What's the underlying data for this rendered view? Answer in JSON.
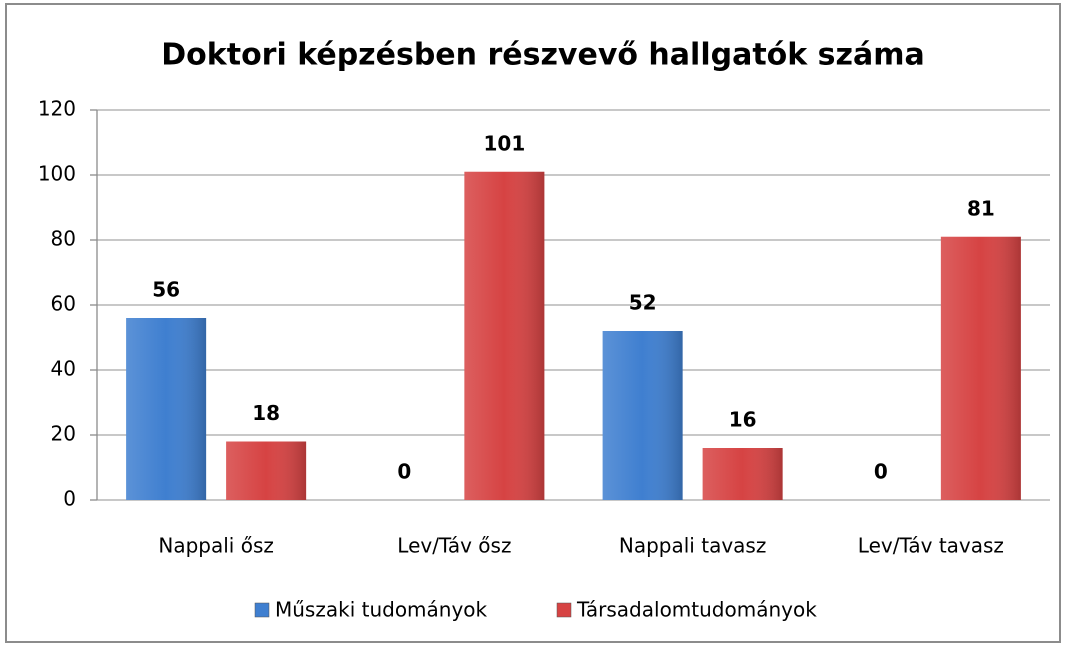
{
  "chart_data": {
    "type": "bar",
    "title": "Doktori képzésben részvevő hallgatók száma",
    "categories": [
      "Nappali ősz",
      "Lev/Táv ősz",
      "Nappali tavasz",
      "Lev/Táv tavasz"
    ],
    "series": [
      {
        "name": "Műszaki tudományok",
        "color": "#3f7fd0",
        "values": [
          56,
          0,
          52,
          0
        ]
      },
      {
        "name": "Társadalomtudományok",
        "color": "#d64343",
        "values": [
          18,
          101,
          16,
          81
        ]
      }
    ],
    "ylim": [
      0,
      120
    ],
    "yticks": [
      0,
      20,
      40,
      60,
      80,
      100,
      120
    ],
    "grid": true,
    "legend": "bottom"
  }
}
